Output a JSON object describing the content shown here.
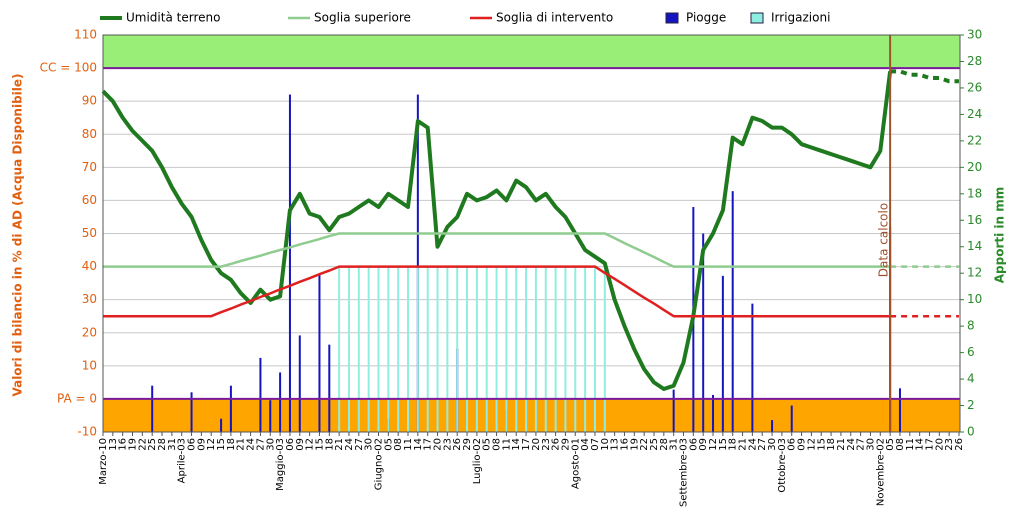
{
  "chart_data": {
    "type": "line",
    "y_label": "Valori di bilancio in % di AD (Acqua Disponibile)",
    "y2_label": "Apporti in mm",
    "categories": [
      "Marzo-10",
      "13",
      "16",
      "19",
      "22",
      "25",
      "28",
      "31",
      "Aprile-03",
      "06",
      "09",
      "12",
      "15",
      "18",
      "21",
      "24",
      "27",
      "30",
      "Maggio-03",
      "06",
      "09",
      "12",
      "15",
      "18",
      "21",
      "24",
      "27",
      "30",
      "Giugno-02",
      "05",
      "08",
      "11",
      "14",
      "17",
      "20",
      "23",
      "26",
      "29",
      "Luglio-02",
      "05",
      "08",
      "11",
      "14",
      "17",
      "20",
      "23",
      "26",
      "29",
      "Agosto-01",
      "04",
      "07",
      "10",
      "13",
      "16",
      "19",
      "22",
      "25",
      "28",
      "31",
      "Settembre-03",
      "06",
      "09",
      "12",
      "15",
      "18",
      "21",
      "24",
      "27",
      "30",
      "Ottobre-03",
      "06",
      "09",
      "12",
      "15",
      "18",
      "21",
      "24",
      "27",
      "30",
      "Novembre-02",
      "05",
      "08",
      "11",
      "14",
      "17",
      "20",
      "23",
      "26"
    ],
    "ylim": [
      -10,
      110
    ],
    "yticks": [
      -10,
      {
        "value": 0,
        "label": "PA = 0"
      },
      10,
      20,
      30,
      40,
      50,
      60,
      70,
      80,
      90,
      {
        "value": 100,
        "label": "CC = 100"
      },
      110
    ],
    "y2lim": [
      0,
      30
    ],
    "y2ticks": [
      0,
      2,
      4,
      6,
      8,
      10,
      12,
      14,
      16,
      18,
      20,
      22,
      24,
      26,
      28,
      30
    ],
    "grid": true,
    "bands": [
      {
        "from": 100,
        "to": 110,
        "color": "#99ee77"
      },
      {
        "from": -10,
        "to": 0,
        "color": "#ffa500"
      }
    ],
    "reference_lines": [
      100,
      0
    ],
    "reference_color": "#7a1a9a",
    "forecast_from_index": 80,
    "annotation": {
      "text": "Data calcolo",
      "index": 80,
      "color": "#a0522d"
    },
    "series": [
      {
        "name": "Umidità terreno",
        "color": "#1f7a1f",
        "type": "line",
        "values": [
          93,
          90,
          85,
          81,
          78,
          75,
          70,
          64,
          59,
          55,
          48,
          42,
          38,
          36,
          32,
          29,
          33,
          30,
          31,
          57,
          62,
          56,
          55,
          51,
          55,
          56,
          58,
          60,
          58,
          62,
          60,
          58,
          84,
          82,
          46,
          52,
          55,
          62,
          60,
          61,
          63,
          60,
          66,
          64,
          60,
          62,
          58,
          55,
          50,
          45,
          43,
          41,
          30,
          22,
          15,
          9,
          5,
          3,
          4,
          11,
          25,
          45,
          50,
          57,
          79,
          77,
          85,
          84,
          82,
          82,
          80,
          77,
          76,
          75,
          74,
          73,
          72,
          71,
          70,
          75,
          99,
          99,
          98,
          98,
          97,
          97,
          96,
          96
        ]
      },
      {
        "name": "Soglia superiore",
        "color": "#8fcc8f",
        "type": "line",
        "values": [
          40,
          40,
          40,
          40,
          40,
          40,
          40,
          40,
          40,
          40,
          40,
          40,
          40,
          40.8,
          41.7,
          42.5,
          43.3,
          44.2,
          45,
          45.8,
          46.7,
          47.5,
          48.3,
          49.2,
          50,
          50,
          50,
          50,
          50,
          50,
          50,
          50,
          50,
          50,
          50,
          50,
          50,
          50,
          50,
          50,
          50,
          50,
          50,
          50,
          50,
          50,
          50,
          50,
          50,
          50,
          50,
          50,
          48.6,
          47.1,
          45.7,
          44.3,
          42.9,
          41.4,
          40,
          40,
          40,
          40,
          40,
          40,
          40,
          40,
          40,
          40,
          40,
          40,
          40,
          40,
          40,
          40,
          40,
          40,
          40,
          40,
          40,
          40,
          40,
          40,
          40,
          40,
          40,
          40,
          40,
          40
        ]
      },
      {
        "name": "Soglia di intervento",
        "color": "#e02020",
        "type": "line",
        "values": [
          25,
          25,
          25,
          25,
          25,
          25,
          25,
          25,
          25,
          25,
          25,
          25,
          26.2,
          27.3,
          28.5,
          29.6,
          30.8,
          31.9,
          33.1,
          34.2,
          35.4,
          36.5,
          37.7,
          38.8,
          40,
          40,
          40,
          40,
          40,
          40,
          40,
          40,
          40,
          40,
          40,
          40,
          40,
          40,
          40,
          40,
          40,
          40,
          40,
          40,
          40,
          40,
          40,
          40,
          40,
          40,
          40,
          38.1,
          36.3,
          34.4,
          32.5,
          30.6,
          28.8,
          26.9,
          25,
          25,
          25,
          25,
          25,
          25,
          25,
          25,
          25,
          25,
          25,
          25,
          25,
          25,
          25,
          25,
          25,
          25,
          25,
          25,
          25,
          25,
          25,
          25,
          25,
          25,
          25,
          25,
          25,
          25
        ]
      },
      {
        "name": "Piogge",
        "color": "#1515c0",
        "type": "bar",
        "axis": "y2",
        "values": [
          null,
          null,
          null,
          null,
          null,
          3.5,
          null,
          null,
          null,
          3,
          null,
          null,
          1,
          3.5,
          null,
          null,
          5.6,
          2.4,
          4.5,
          25.5,
          7.3,
          null,
          11.9,
          6.6,
          null,
          null,
          null,
          null,
          null,
          1,
          null,
          null,
          25.5,
          null,
          null,
          null,
          6.3,
          null,
          null,
          null,
          null,
          1.7,
          null,
          null,
          null,
          null,
          null,
          null,
          null,
          null,
          null,
          null,
          null,
          null,
          null,
          null,
          null,
          null,
          3.2,
          null,
          17,
          15,
          2.8,
          11.8,
          18.2,
          null,
          9.7,
          null,
          0.9,
          null,
          2,
          null,
          null,
          null,
          null,
          null,
          null,
          null,
          null,
          null,
          15.5,
          3.3,
          null,
          null,
          null,
          null,
          null,
          null
        ]
      },
      {
        "name": "Irrigazioni",
        "color": "#90eee0",
        "type": "bar",
        "axis": "y2",
        "values": [
          null,
          null,
          null,
          null,
          null,
          null,
          null,
          null,
          null,
          null,
          null,
          null,
          null,
          null,
          null,
          null,
          null,
          null,
          null,
          null,
          null,
          null,
          null,
          null,
          12.5,
          12.5,
          12.5,
          12.5,
          12.5,
          12.5,
          12.5,
          12.5,
          12.5,
          12.5,
          12.5,
          12.5,
          12.5,
          12.5,
          12.5,
          12.5,
          12.5,
          12.5,
          12.5,
          12.5,
          12.5,
          12.5,
          12.5,
          12.5,
          12.5,
          12.5,
          12.5,
          12.5,
          null,
          null,
          null,
          null,
          null,
          null,
          null,
          null,
          null,
          null,
          null,
          null,
          null,
          null,
          null,
          null,
          null,
          null,
          null,
          null,
          null,
          null,
          null,
          null,
          null,
          null,
          null,
          null,
          null,
          null,
          null,
          null,
          null,
          null,
          null,
          null
        ]
      }
    ]
  }
}
